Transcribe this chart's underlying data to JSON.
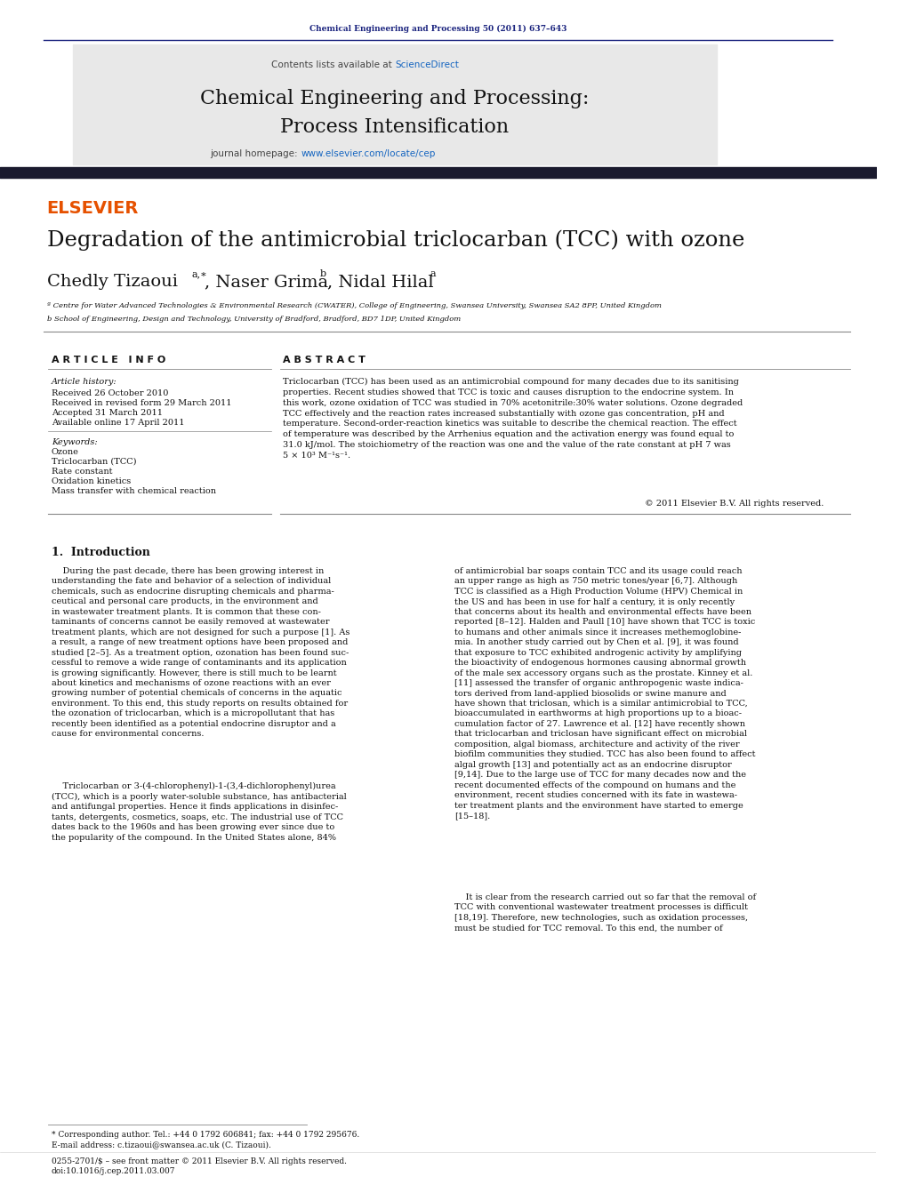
{
  "page_width": 10.21,
  "page_height": 13.51,
  "bg_color": "#ffffff",
  "journal_ref": "Chemical Engineering and Processing 50 (2011) 637–643",
  "journal_ref_color": "#1a237e",
  "sciencedirect_color": "#1565c0",
  "journal_title_line1": "Chemical Engineering and Processing:",
  "journal_title_line2": "Process Intensification",
  "homepage_link_color": "#1565c0",
  "elsevier_color": "#e65100",
  "header_bg": "#e8e8e8",
  "dark_bar_color": "#1a1a2e",
  "paper_title": "Degradation of the antimicrobial triclocarban (TCC) with ozone",
  "affil_a": "ª Centre for Water Advanced Technologies & Environmental Research (CWATER), College of Engineering, Swansea University, Swansea SA2 8PP, United Kingdom",
  "affil_b": "b School of Engineering, Design and Technology, University of Bradford, Bradford, BD7 1DP, United Kingdom",
  "article_info_header": "A R T I C L E   I N F O",
  "abstract_header": "A B S T R A C T",
  "article_history_label": "Article history:",
  "received": "Received 26 October 2010",
  "received_revised": "Received in revised form 29 March 2011",
  "accepted": "Accepted 31 March 2011",
  "available": "Available online 17 April 2011",
  "keywords_label": "Keywords:",
  "keyword1": "Ozone",
  "keyword2": "Triclocarban (TCC)",
  "keyword3": "Rate constant",
  "keyword4": "Oxidation kinetics",
  "keyword5": "Mass transfer with chemical reaction",
  "copyright": "© 2011 Elsevier B.V. All rights reserved.",
  "section1_title": "1.  Introduction",
  "footnote1": "* Corresponding author. Tel.: +44 0 1792 606841; fax: +44 0 1792 295676.",
  "footnote2": "E-mail address: c.tizaoui@swansea.ac.uk (C. Tizaoui).",
  "footnote3": "0255-2701/$ – see front matter © 2011 Elsevier B.V. All rights reserved.",
  "footnote4": "doi:10.1016/j.cep.2011.03.007"
}
